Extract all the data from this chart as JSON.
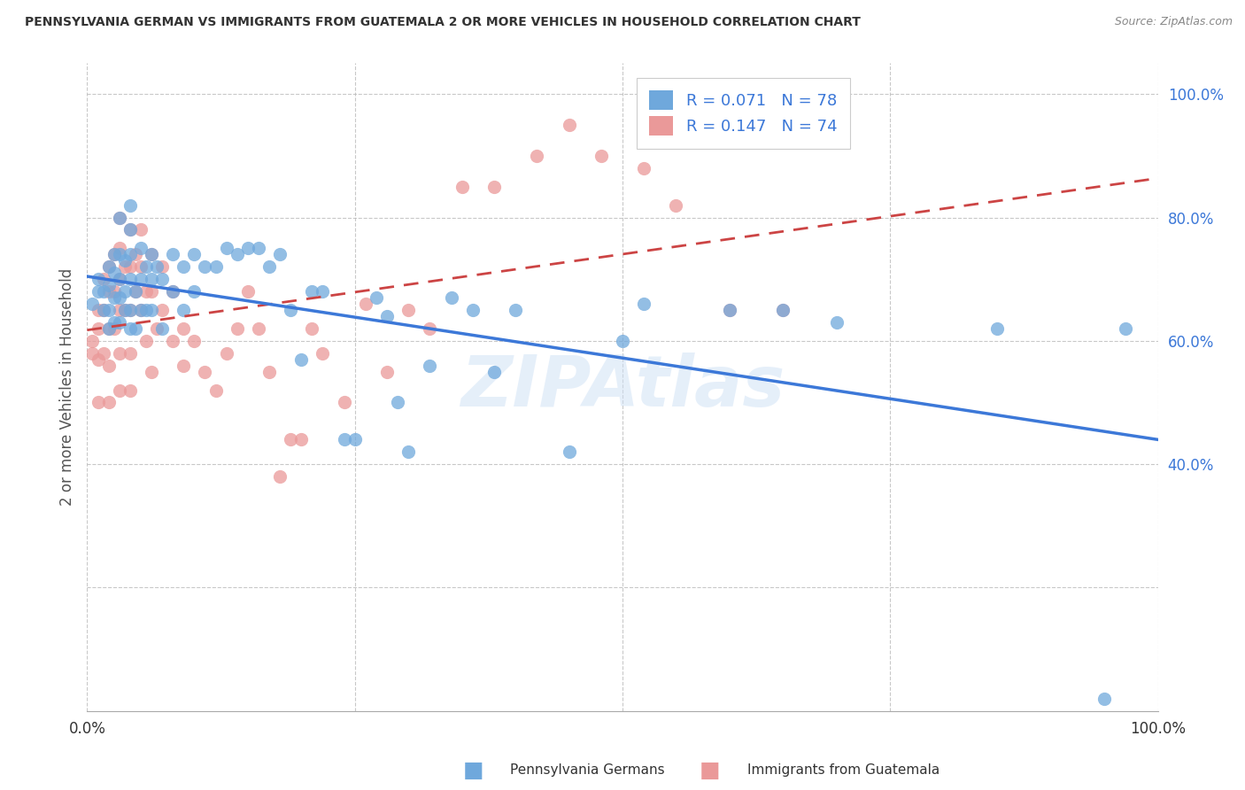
{
  "title": "PENNSYLVANIA GERMAN VS IMMIGRANTS FROM GUATEMALA 2 OR MORE VEHICLES IN HOUSEHOLD CORRELATION CHART",
  "source": "Source: ZipAtlas.com",
  "ylabel": "2 or more Vehicles in Household",
  "legend_blue_label": "Pennsylvania Germans",
  "legend_pink_label": "Immigrants from Guatemala",
  "R_blue": 0.071,
  "N_blue": 78,
  "R_pink": 0.147,
  "N_pink": 74,
  "blue_color": "#6fa8dc",
  "pink_color": "#ea9999",
  "blue_line_color": "#3c78d8",
  "pink_line_color": "#cc4444",
  "watermark": "ZIPAtlas",
  "blue_scatter_x": [
    0.005,
    0.01,
    0.01,
    0.015,
    0.015,
    0.02,
    0.02,
    0.02,
    0.02,
    0.025,
    0.025,
    0.025,
    0.025,
    0.03,
    0.03,
    0.03,
    0.03,
    0.03,
    0.035,
    0.035,
    0.035,
    0.04,
    0.04,
    0.04,
    0.04,
    0.04,
    0.04,
    0.045,
    0.045,
    0.05,
    0.05,
    0.05,
    0.055,
    0.055,
    0.06,
    0.06,
    0.06,
    0.065,
    0.07,
    0.07,
    0.08,
    0.08,
    0.09,
    0.09,
    0.1,
    0.1,
    0.11,
    0.12,
    0.13,
    0.14,
    0.15,
    0.16,
    0.17,
    0.18,
    0.19,
    0.2,
    0.21,
    0.22,
    0.24,
    0.25,
    0.27,
    0.28,
    0.29,
    0.3,
    0.32,
    0.34,
    0.36,
    0.38,
    0.4,
    0.45,
    0.5,
    0.52,
    0.6,
    0.65,
    0.7,
    0.85,
    0.95,
    0.97
  ],
  "blue_scatter_y": [
    0.66,
    0.7,
    0.68,
    0.68,
    0.65,
    0.72,
    0.69,
    0.65,
    0.62,
    0.74,
    0.71,
    0.67,
    0.63,
    0.8,
    0.74,
    0.7,
    0.67,
    0.63,
    0.73,
    0.68,
    0.65,
    0.82,
    0.78,
    0.74,
    0.7,
    0.65,
    0.62,
    0.68,
    0.62,
    0.75,
    0.7,
    0.65,
    0.72,
    0.65,
    0.74,
    0.7,
    0.65,
    0.72,
    0.7,
    0.62,
    0.74,
    0.68,
    0.72,
    0.65,
    0.74,
    0.68,
    0.72,
    0.72,
    0.75,
    0.74,
    0.75,
    0.75,
    0.72,
    0.74,
    0.65,
    0.57,
    0.68,
    0.68,
    0.44,
    0.44,
    0.67,
    0.64,
    0.5,
    0.42,
    0.56,
    0.67,
    0.65,
    0.55,
    0.65,
    0.42,
    0.6,
    0.66,
    0.65,
    0.65,
    0.63,
    0.62,
    0.02,
    0.62
  ],
  "pink_scatter_x": [
    0.005,
    0.005,
    0.01,
    0.01,
    0.01,
    0.01,
    0.015,
    0.015,
    0.015,
    0.02,
    0.02,
    0.02,
    0.02,
    0.02,
    0.025,
    0.025,
    0.025,
    0.03,
    0.03,
    0.03,
    0.03,
    0.03,
    0.03,
    0.035,
    0.035,
    0.04,
    0.04,
    0.04,
    0.04,
    0.04,
    0.045,
    0.045,
    0.05,
    0.05,
    0.05,
    0.055,
    0.055,
    0.06,
    0.06,
    0.06,
    0.065,
    0.07,
    0.07,
    0.08,
    0.08,
    0.09,
    0.09,
    0.1,
    0.11,
    0.12,
    0.13,
    0.14,
    0.15,
    0.16,
    0.17,
    0.18,
    0.19,
    0.2,
    0.21,
    0.22,
    0.24,
    0.26,
    0.28,
    0.3,
    0.32,
    0.35,
    0.38,
    0.42,
    0.45,
    0.48,
    0.52,
    0.55,
    0.6,
    0.65
  ],
  "pink_scatter_y": [
    0.6,
    0.58,
    0.65,
    0.62,
    0.57,
    0.5,
    0.7,
    0.65,
    0.58,
    0.72,
    0.68,
    0.62,
    0.56,
    0.5,
    0.74,
    0.68,
    0.62,
    0.8,
    0.75,
    0.7,
    0.65,
    0.58,
    0.52,
    0.72,
    0.65,
    0.78,
    0.72,
    0.65,
    0.58,
    0.52,
    0.74,
    0.68,
    0.78,
    0.72,
    0.65,
    0.68,
    0.6,
    0.74,
    0.68,
    0.55,
    0.62,
    0.72,
    0.65,
    0.68,
    0.6,
    0.62,
    0.56,
    0.6,
    0.55,
    0.52,
    0.58,
    0.62,
    0.68,
    0.62,
    0.55,
    0.38,
    0.44,
    0.44,
    0.62,
    0.58,
    0.5,
    0.66,
    0.55,
    0.65,
    0.62,
    0.85,
    0.85,
    0.9,
    0.95,
    0.9,
    0.88,
    0.82,
    0.65,
    0.65
  ],
  "xlim": [
    0.0,
    1.0
  ],
  "ylim": [
    0.0,
    1.05
  ]
}
